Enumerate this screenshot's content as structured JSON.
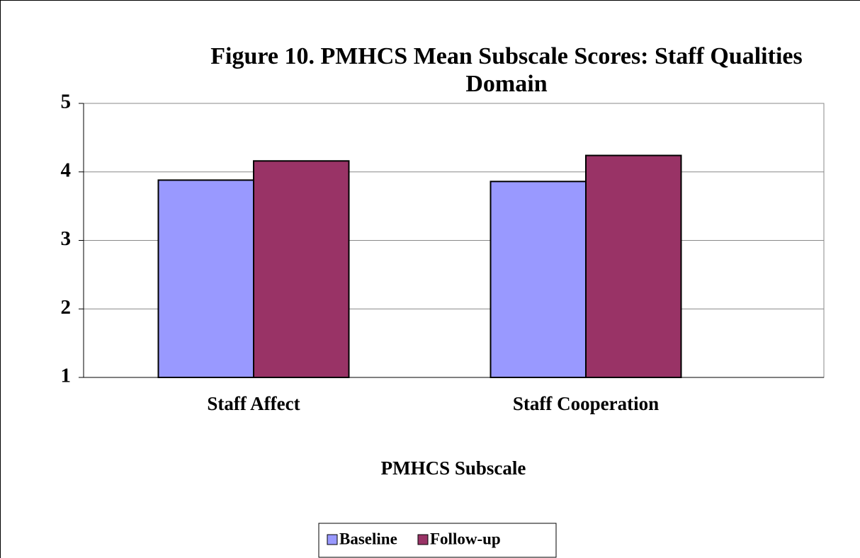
{
  "chart_data": {
    "type": "bar",
    "title": "Figure 10.  PMHCS Mean Subscale Scores: Staff Qualities Domain",
    "x_label": "PMHCS Subscale",
    "categories": [
      "Staff Affect",
      "Staff Cooperation"
    ],
    "series": [
      {
        "name": "Baseline",
        "color": "#9999ff",
        "values": [
          3.88,
          3.86
        ]
      },
      {
        "name": "Follow-up",
        "color": "#993366",
        "values": [
          4.16,
          4.24
        ]
      }
    ],
    "ylim": [
      1,
      5
    ],
    "yticks": [
      1,
      2,
      3,
      4,
      5
    ],
    "grid": true,
    "legend": "bottom"
  }
}
